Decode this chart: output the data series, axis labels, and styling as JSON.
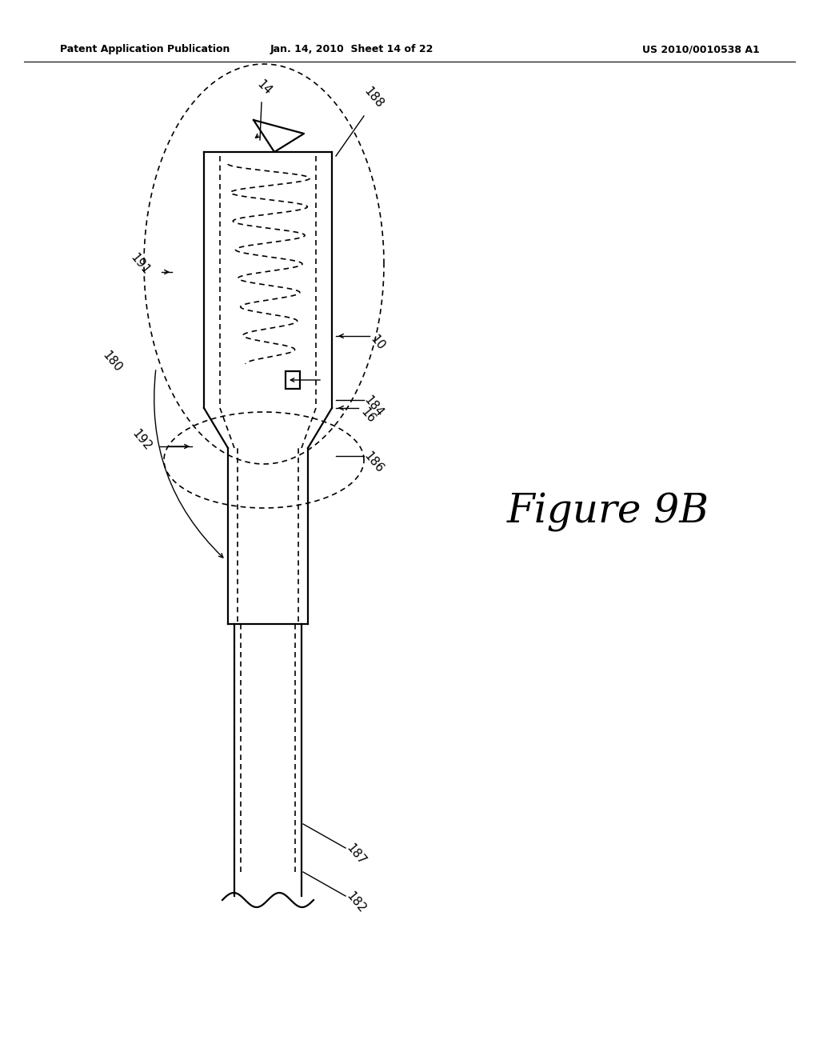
{
  "bg_color": "#ffffff",
  "header_left": "Patent Application Publication",
  "header_center": "Jan. 14, 2010  Sheet 14 of 22",
  "header_right": "US 2010/0010538 A1",
  "figure_label": "Figure 9B",
  "lw_main": 1.6,
  "lw_dashed": 1.2,
  "lw_leader": 1.0,
  "label_fontsize": 11,
  "header_fontsize": 9
}
